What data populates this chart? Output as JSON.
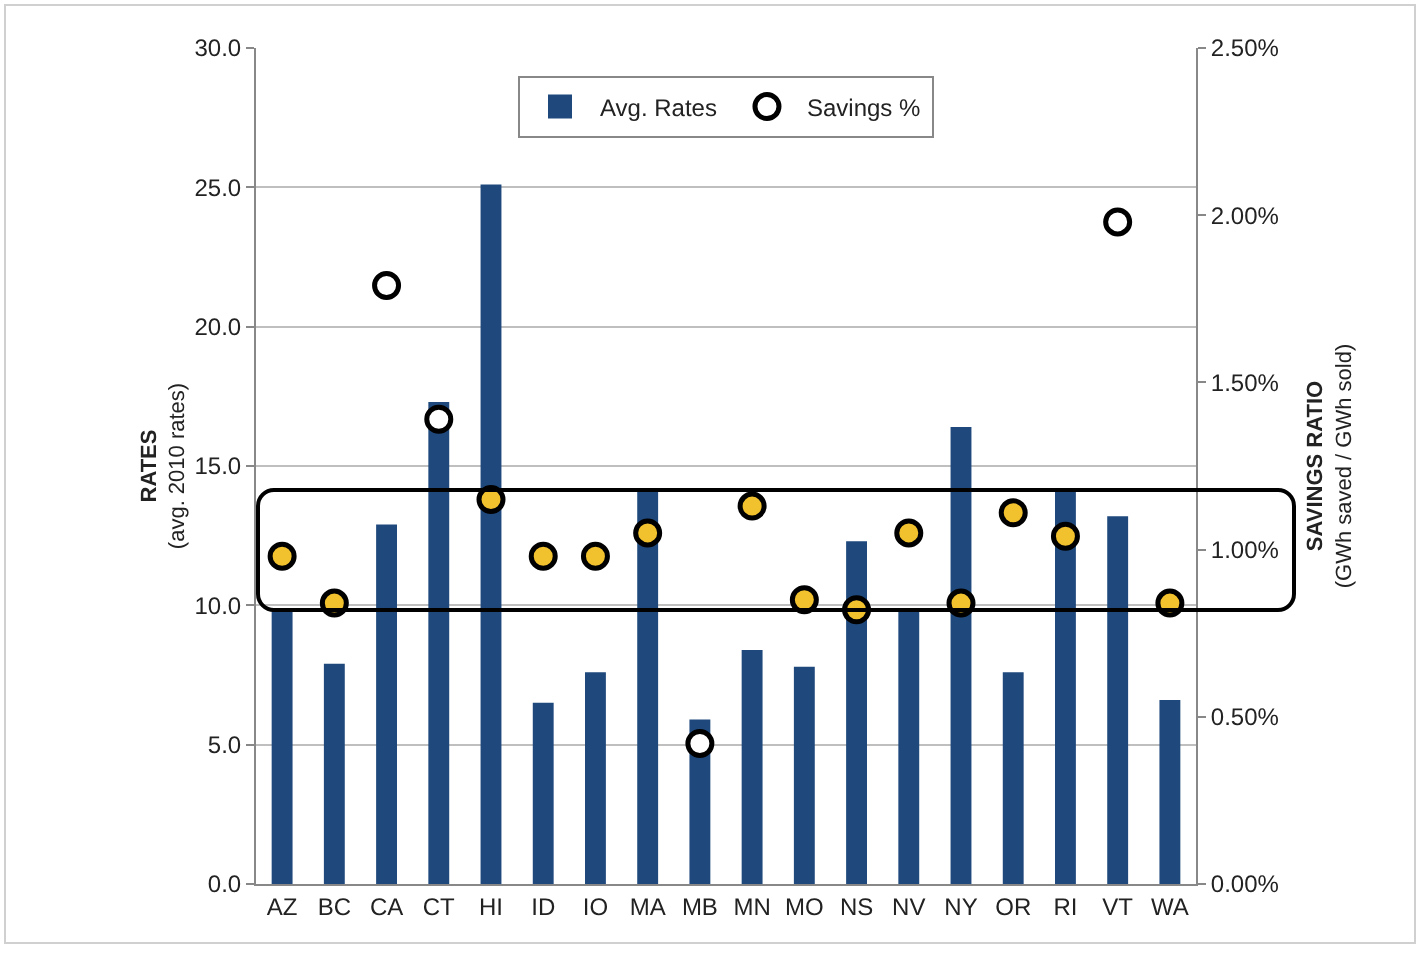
{
  "chart_data": {
    "type": "bar",
    "categories": [
      "AZ",
      "BC",
      "CA",
      "CT",
      "HI",
      "ID",
      "IO",
      "MA",
      "MB",
      "MN",
      "MO",
      "NS",
      "NV",
      "NY",
      "OR",
      "RI",
      "VT",
      "WA"
    ],
    "series": [
      {
        "name": "Avg. Rates",
        "color": "#1f497d",
        "values": [
          9.8,
          7.9,
          12.9,
          17.3,
          25.1,
          6.5,
          7.6,
          14.2,
          5.9,
          8.4,
          7.8,
          12.3,
          9.8,
          16.4,
          7.6,
          14.1,
          13.2,
          6.6
        ]
      },
      {
        "name": "Savings %",
        "type": "scatter",
        "axis": "y2",
        "color": "#ffffff",
        "colors": [
          "#f2c12e",
          "#f2c12e",
          "#ffffff",
          "#ffffff",
          "#f2c12e",
          "#f2c12e",
          "#f2c12e",
          "#f2c12e",
          "#ffffff",
          "#f2c12e",
          "#f2c12e",
          "#f2c12e",
          "#f2c12e",
          "#f2c12e",
          "#f2c12e",
          "#f2c12e",
          "#ffffff",
          "#f2c12e"
        ],
        "values": [
          0.98,
          0.84,
          1.79,
          1.39,
          1.15,
          0.98,
          0.98,
          1.05,
          0.42,
          1.13,
          0.85,
          0.82,
          1.05,
          0.84,
          1.11,
          1.04,
          1.98,
          0.84
        ]
      }
    ],
    "ylabel": "RATES\n(avg. 2010 rates)",
    "y2label": "SAVINGS RATIO\n(GWh saved / GWh sold)",
    "ylim": [
      0,
      30
    ],
    "yticks": [
      {
        "value": 0,
        "label": "0.0"
      },
      {
        "value": 5,
        "label": "5.0"
      },
      {
        "value": 10,
        "label": "10.0"
      },
      {
        "value": 15,
        "label": "15.0"
      },
      {
        "value": 20,
        "label": "20.0"
      },
      {
        "value": 25,
        "label": "25.0"
      },
      {
        "value": 30,
        "label": "30.0"
      }
    ],
    "y2lim": [
      0,
      2.5
    ],
    "y2ticks": [
      {
        "value": 0,
        "label": "0.00%"
      },
      {
        "value": 0.5,
        "label": "0.50%"
      },
      {
        "value": 1,
        "label": "1.00%"
      },
      {
        "value": 1.5,
        "label": "1.50%"
      },
      {
        "value": 2,
        "label": "2.00%"
      },
      {
        "value": 2.5,
        "label": "2.50%"
      }
    ],
    "grid": "y",
    "legend": "top",
    "marker": "circle"
  }
}
